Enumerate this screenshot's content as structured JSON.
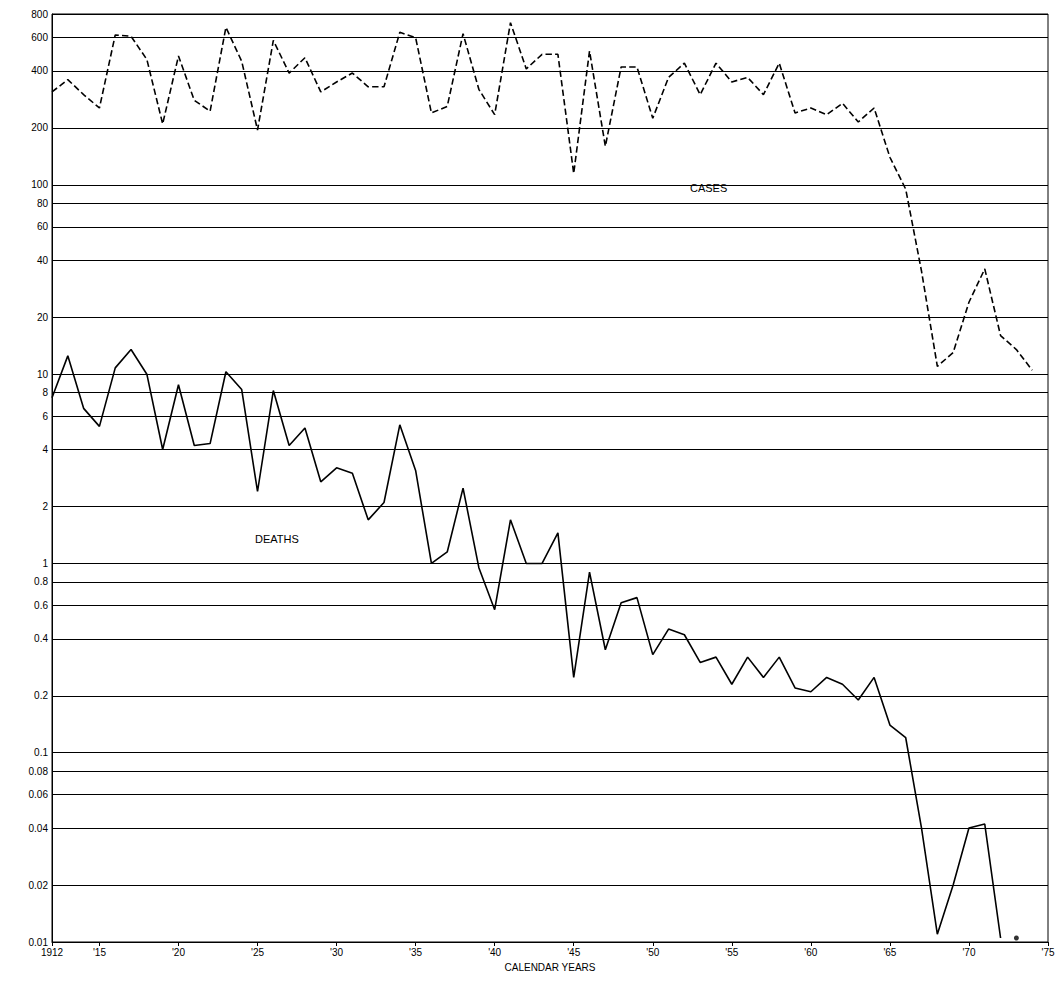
{
  "chart_data": {
    "type": "line",
    "log": "y",
    "grid": true,
    "x_label": "CALENDAR YEARS",
    "annotations": [
      "CASES",
      "DEATHS"
    ],
    "x": [
      1912,
      1913,
      1914,
      1915,
      1916,
      1917,
      1918,
      1919,
      1920,
      1921,
      1922,
      1923,
      1924,
      1925,
      1926,
      1927,
      1928,
      1929,
      1930,
      1931,
      1932,
      1933,
      1934,
      1935,
      1936,
      1937,
      1938,
      1939,
      1940,
      1941,
      1942,
      1943,
      1944,
      1945,
      1946,
      1947,
      1948,
      1949,
      1950,
      1951,
      1952,
      1953,
      1954,
      1955,
      1956,
      1957,
      1958,
      1959,
      1960,
      1961,
      1962,
      1963,
      1964,
      1965,
      1966,
      1967,
      1968,
      1969,
      1970,
      1971,
      1972,
      1973,
      1974
    ],
    "series": [
      {
        "name": "CASES",
        "color": "#000000",
        "line_style": "dashed",
        "marker": "none",
        "values": [
          310,
          360,
          300,
          255,
          620,
          610,
          460,
          210,
          480,
          280,
          245,
          680,
          450,
          195,
          580,
          390,
          470,
          310,
          350,
          390,
          330,
          330,
          640,
          600,
          240,
          260,
          630,
          320,
          235,
          720,
          410,
          490,
          490,
          115,
          510,
          160,
          420,
          420,
          225,
          370,
          440,
          300,
          440,
          350,
          370,
          300,
          440,
          240,
          255,
          235,
          270,
          215,
          255,
          140,
          95,
          35,
          11,
          13,
          24,
          36,
          16,
          13.5,
          10.5
        ]
      },
      {
        "name": "DEATHS",
        "color": "#000000",
        "line_style": "solid",
        "marker": "none",
        "values": [
          7.5,
          12.5,
          6.6,
          5.3,
          10.8,
          13.5,
          10,
          4,
          8.8,
          4.2,
          4.3,
          10.3,
          8.3,
          2.4,
          8.2,
          4.2,
          5.2,
          2.7,
          3.2,
          3,
          1.7,
          2.1,
          5.4,
          3.1,
          1,
          1.15,
          2.5,
          0.95,
          0.57,
          1.7,
          1,
          1,
          1.45,
          0.25,
          0.9,
          0.35,
          0.62,
          0.66,
          0.33,
          0.45,
          0.42,
          0.3,
          0.32,
          0.23,
          0.32,
          0.25,
          0.32,
          0.22,
          0.21,
          0.25,
          0.23,
          0.19,
          0.25,
          0.14,
          0.12,
          0.04,
          0.011,
          0.02,
          0.04,
          0.042,
          0.0105,
          null,
          null
        ]
      },
      {
        "type": "scatter",
        "color": "#000000",
        "marker": "circle",
        "x": [
          1973
        ],
        "values": [
          0.0105
        ]
      }
    ],
    "xlim": [
      1912,
      1975
    ],
    "xticks": [
      1912,
      {
        "value": 1915,
        "label": "'15"
      },
      {
        "value": 1920,
        "label": "'20"
      },
      {
        "value": 1925,
        "label": "'25"
      },
      {
        "value": 1930,
        "label": "'30"
      },
      {
        "value": 1935,
        "label": "'35"
      },
      {
        "value": 1940,
        "label": "'40"
      },
      {
        "value": 1945,
        "label": "'45"
      },
      {
        "value": 1950,
        "label": "'50"
      },
      {
        "value": 1955,
        "label": "'55"
      },
      {
        "value": 1960,
        "label": "'60"
      },
      {
        "value": 1965,
        "label": "'65"
      },
      {
        "value": 1970,
        "label": "'70"
      },
      {
        "value": 1975,
        "label": "'75"
      }
    ],
    "ylim": [
      0.01,
      800
    ],
    "yticks": [
      0.01,
      0.02,
      0.04,
      0.06,
      0.08,
      0.1,
      0.2,
      0.4,
      0.6,
      0.8,
      1,
      2,
      4,
      6,
      8,
      10,
      20,
      40,
      60,
      80,
      100,
      200,
      400,
      600,
      800
    ]
  }
}
